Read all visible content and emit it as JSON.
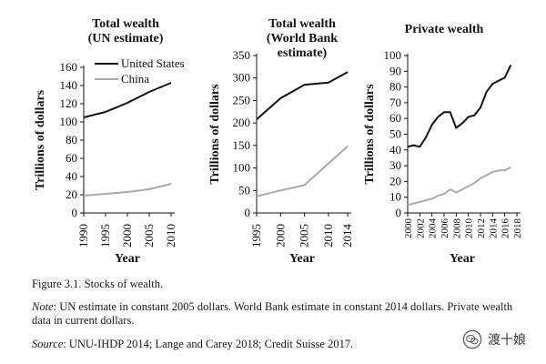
{
  "chart_data": [
    {
      "type": "line",
      "title": [
        "Total wealth",
        "(UN estimate)"
      ],
      "xlabel": "Year",
      "ylabel": "Trillions of dollars",
      "ylim": [
        0,
        160
      ],
      "yticks": [
        0,
        20,
        40,
        60,
        80,
        100,
        120,
        140,
        160
      ],
      "xlim": [
        1990,
        2010
      ],
      "xticks": [
        "1990",
        "1995",
        "2000",
        "2005",
        "2010"
      ],
      "legend_position": "top-right",
      "series": [
        {
          "name": "United States",
          "color": "#111111",
          "x": [
            1990,
            1995,
            2000,
            2005,
            2010
          ],
          "values": [
            105,
            111,
            121,
            133,
            143
          ]
        },
        {
          "name": "China",
          "color": "#aaaaaa",
          "x": [
            1990,
            1995,
            2000,
            2005,
            2010
          ],
          "values": [
            19,
            21,
            23,
            26,
            32
          ]
        }
      ]
    },
    {
      "type": "line",
      "title": [
        "Total wealth",
        "(World Bank",
        "estimate)"
      ],
      "xlabel": "Year",
      "ylabel": "Trillions of dollars",
      "ylim": [
        0,
        350
      ],
      "yticks": [
        0,
        50,
        100,
        150,
        200,
        250,
        300,
        350
      ],
      "xlim": [
        1995,
        2014
      ],
      "xticks": [
        "1995",
        "2000",
        "2005",
        "2010",
        "2014"
      ],
      "series": [
        {
          "name": "United States",
          "color": "#111111",
          "x": [
            1995,
            2000,
            2005,
            2010,
            2014
          ],
          "values": [
            208,
            255,
            285,
            290,
            313
          ]
        },
        {
          "name": "China",
          "color": "#aaaaaa",
          "x": [
            1995,
            2000,
            2005,
            2010,
            2014
          ],
          "values": [
            37,
            50,
            62,
            110,
            148
          ]
        }
      ]
    },
    {
      "type": "line",
      "title": [
        "Private wealth"
      ],
      "xlabel": "Year",
      "ylabel": "Trillions of dollars",
      "ylim": [
        0,
        100
      ],
      "yticks": [
        0,
        10,
        20,
        30,
        40,
        50,
        60,
        70,
        80,
        90,
        100
      ],
      "xlim": [
        2000,
        2018
      ],
      "xticks": [
        "2000",
        "2002",
        "2004",
        "2006",
        "2008",
        "2010",
        "2012",
        "2014",
        "2016",
        "2018"
      ],
      "series": [
        {
          "name": "United States",
          "color": "#111111",
          "x": [
            2000,
            2001,
            2002,
            2003,
            2004,
            2005,
            2006,
            2007,
            2008,
            2009,
            2010,
            2011,
            2012,
            2013,
            2014,
            2015,
            2016,
            2017
          ],
          "values": [
            42,
            43,
            42,
            48,
            56,
            61,
            64,
            64,
            54,
            57,
            61,
            62,
            67,
            77,
            82,
            84,
            86,
            94
          ]
        },
        {
          "name": "China",
          "color": "#aaaaaa",
          "x": [
            2000,
            2001,
            2002,
            2003,
            2004,
            2005,
            2006,
            2007,
            2008,
            2009,
            2010,
            2011,
            2012,
            2013,
            2014,
            2015,
            2016,
            2017
          ],
          "values": [
            5,
            6,
            7,
            8,
            9,
            11,
            12,
            15,
            13,
            15,
            17,
            19,
            22,
            24,
            26,
            27,
            27,
            29
          ]
        }
      ]
    }
  ],
  "caption": "Figure 3.1. Stocks of wealth.",
  "note": {
    "label": "Note",
    "text": ": UN estimate in constant 2005 dollars. World Bank estimate in constant 2014 dollars. Private wealth data in current dollars."
  },
  "source": {
    "label": "Source",
    "text": ": UNU-IHDP 2014; Lange and Carey 2018; Credit Suisse 2017."
  },
  "watermark": {
    "text": "渡十娘",
    "icon": "wechat-icon"
  }
}
